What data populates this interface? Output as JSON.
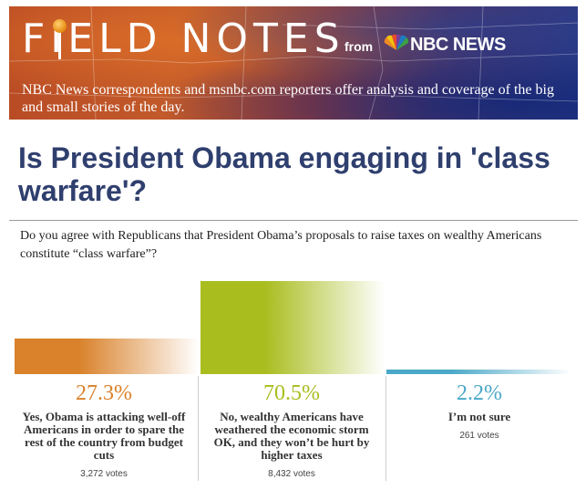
{
  "header": {
    "brand": "FIELD NOTES",
    "from_label": "from",
    "network": "NBC NEWS",
    "tagline": "NBC News correspondents and msnbc.com reporters offer analysis and coverage of the big and small stories of the day."
  },
  "page_title": "Is President Obama engaging in 'class warfare'?",
  "question": "Do you agree with Republicans that President Obama’s proposals to raise taxes on wealthy Americans constitute “class warfare”?",
  "colors": {
    "yes": "#d9822b",
    "no": "#a9bd1f",
    "unsure": "#4aa8c8",
    "title": "#2f3f6e"
  },
  "chart_data": {
    "type": "bar",
    "categories": [
      "Yes, Obama is attacking well-off Americans in order to spare the rest of the country from budget cuts",
      "No, wealthy Americans have weathered the economic storm OK, and they won’t be hurt by higher taxes",
      "I’m not sure"
    ],
    "values": [
      27.3,
      70.5,
      2.2
    ],
    "labels": [
      "27.3%",
      "70.5%",
      "2.2%"
    ],
    "votes": [
      "3,272 votes",
      "8,432 votes",
      "261 votes"
    ],
    "ylim": [
      0,
      70.5
    ]
  }
}
